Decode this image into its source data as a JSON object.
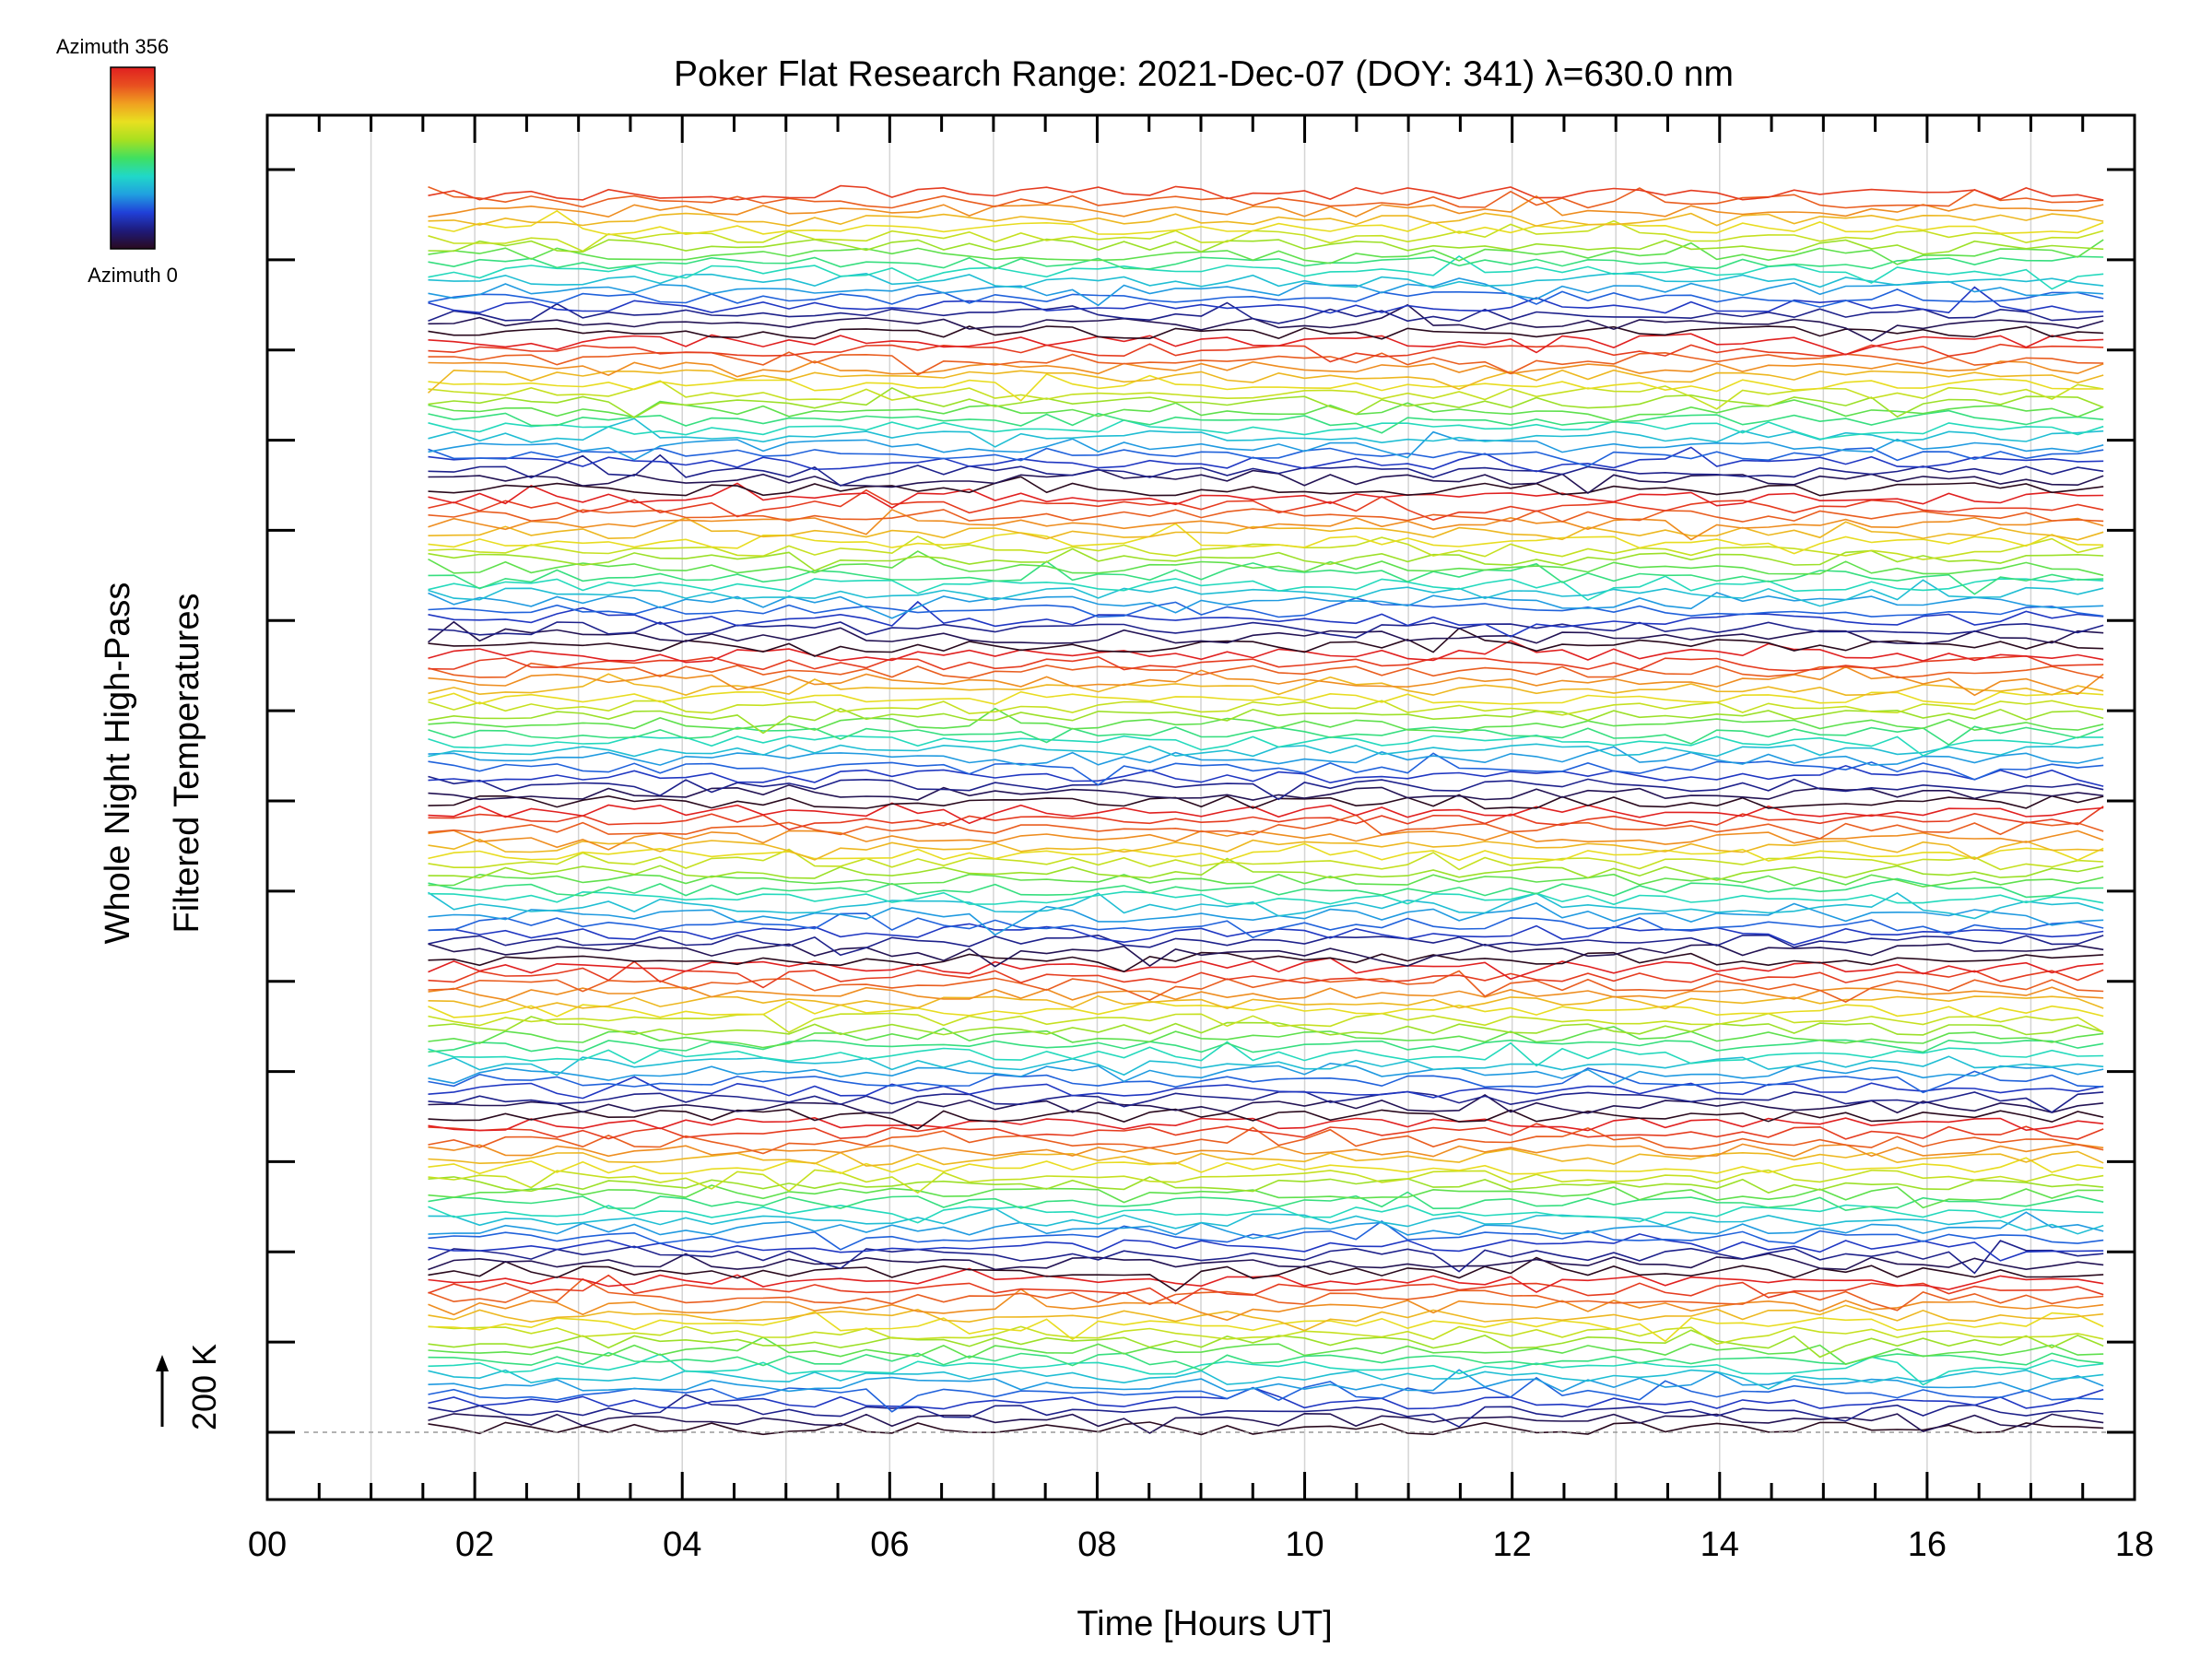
{
  "colorbar": {
    "top_label": "Azimuth 356",
    "bottom_label": "Azimuth 0",
    "stops": [
      "#2a0a1e",
      "#1e1a7a",
      "#2040d8",
      "#20a0e0",
      "#20d8c8",
      "#40e060",
      "#a8e020",
      "#e8e020",
      "#f0a020",
      "#e85020",
      "#e02020"
    ]
  },
  "chart_data": {
    "type": "line",
    "title": "Poker Flat Research Range: 2021-Dec-07 (DOY: 341) λ=630.0 nm",
    "xlabel": "Time [Hours UT]",
    "ylabel_line1": "Whole Night High-Pass",
    "ylabel_line2": "Filtered Temperatures",
    "scale_label": "200 K",
    "xlim": [
      0,
      18
    ],
    "x_tick_labels": [
      "00",
      "02",
      "04",
      "06",
      "08",
      "10",
      "12",
      "14",
      "16",
      "18"
    ],
    "data_time_range": [
      1.55,
      17.7
    ],
    "grid": "vertical lines at every hour",
    "y_axis": "stacked traces offset by azimuth, no numeric tick labels",
    "series_count": 143,
    "line_color_scale": "azimuth 0 (dark) to 356 (red), repeating bands"
  }
}
